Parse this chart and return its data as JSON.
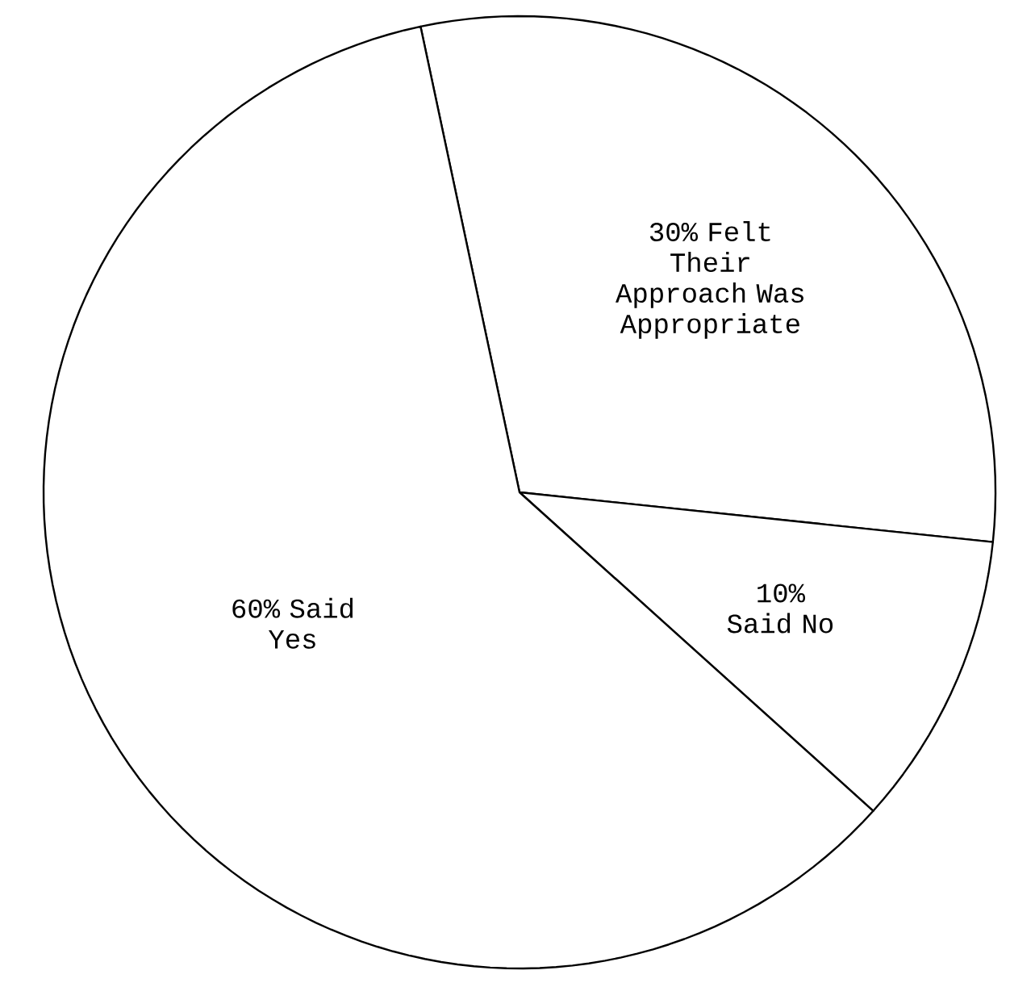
{
  "chart_data": {
    "type": "pie",
    "categories": [
      "Felt Their Approach Was Appropriate",
      "Said No",
      "Said Yes"
    ],
    "values": [
      30,
      10,
      60
    ],
    "value_labels": [
      "30%",
      "10%",
      "60%"
    ],
    "colors": [
      "#ffffff",
      "#ffffff",
      "#ffffff"
    ]
  }
}
